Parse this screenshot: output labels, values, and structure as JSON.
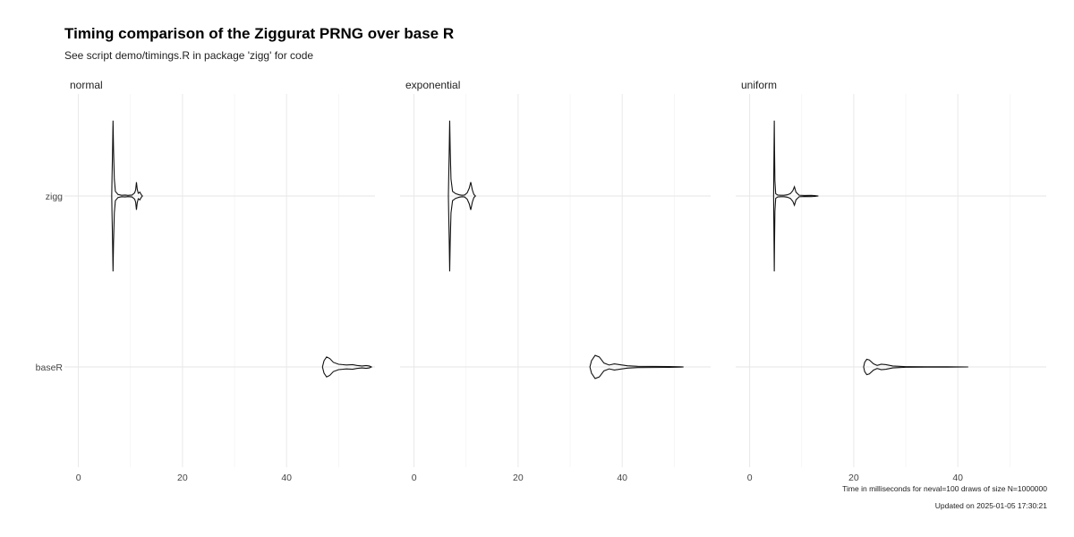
{
  "chart_data": {
    "type": "violin",
    "title": "Timing comparison of the Ziggurat PRNG over base R",
    "subtitle": "See script demo/timings.R in package 'zigg' for code",
    "caption_lines": [
      "Time in milliseconds for neval=100 draws of size N=1000000",
      "Updated on 2025-01-05 17:30:21"
    ],
    "categories": [
      "zigg",
      "baseR"
    ],
    "xlim": [
      -2,
      57
    ],
    "x_ticks": [
      0,
      20,
      40
    ],
    "x_minor_ticks": [
      10,
      30,
      50
    ],
    "grid": true,
    "panels": [
      {
        "name": "normal",
        "series": [
          {
            "category": "zigg",
            "profile": [
              [
                6.4,
                0.0
              ],
              [
                6.45,
                0.2
              ],
              [
                6.55,
                0.55
              ],
              [
                6.65,
                0.98
              ],
              [
                6.75,
                0.6
              ],
              [
                6.9,
                0.22
              ],
              [
                7.1,
                0.06
              ],
              [
                7.6,
                0.02
              ],
              [
                8.3,
                0.01
              ],
              [
                9.0,
                0.012
              ],
              [
                9.5,
                0.008
              ],
              [
                10.3,
                0.012
              ],
              [
                10.8,
                0.04
              ],
              [
                11.0,
                0.08
              ],
              [
                11.15,
                0.18
              ],
              [
                11.3,
                0.09
              ],
              [
                11.5,
                0.035
              ],
              [
                11.8,
                0.05
              ],
              [
                12.1,
                0.015
              ],
              [
                12.3,
                0.0
              ]
            ]
          },
          {
            "category": "baseR",
            "profile": [
              [
                46.9,
                0.0
              ],
              [
                47.2,
                0.08
              ],
              [
                47.7,
                0.13
              ],
              [
                48.3,
                0.11
              ],
              [
                49.0,
                0.06
              ],
              [
                50.0,
                0.035
              ],
              [
                51.5,
                0.025
              ],
              [
                52.7,
                0.03
              ],
              [
                53.5,
                0.02
              ],
              [
                54.5,
                0.012
              ],
              [
                55.3,
                0.018
              ],
              [
                55.9,
                0.012
              ],
              [
                56.3,
                0.0
              ]
            ]
          }
        ]
      },
      {
        "name": "exponential",
        "series": [
          {
            "category": "zigg",
            "profile": [
              [
                6.6,
                0.0
              ],
              [
                6.65,
                0.2
              ],
              [
                6.75,
                0.55
              ],
              [
                6.85,
                0.98
              ],
              [
                6.95,
                0.6
              ],
              [
                7.1,
                0.22
              ],
              [
                7.4,
                0.06
              ],
              [
                8.0,
                0.03
              ],
              [
                8.7,
                0.015
              ],
              [
                9.2,
                0.01
              ],
              [
                9.7,
                0.012
              ],
              [
                10.2,
                0.04
              ],
              [
                10.6,
                0.1
              ],
              [
                10.9,
                0.18
              ],
              [
                11.2,
                0.08
              ],
              [
                11.5,
                0.02
              ],
              [
                11.8,
                0.0
              ]
            ]
          },
          {
            "category": "baseR",
            "profile": [
              [
                33.8,
                0.0
              ],
              [
                34.1,
                0.08
              ],
              [
                34.8,
                0.15
              ],
              [
                35.6,
                0.13
              ],
              [
                36.5,
                0.05
              ],
              [
                37.5,
                0.025
              ],
              [
                38.5,
                0.04
              ],
              [
                39.5,
                0.03
              ],
              [
                41,
                0.015
              ],
              [
                43,
                0.008
              ],
              [
                46,
                0.006
              ],
              [
                49,
                0.005
              ],
              [
                51,
                0.003
              ],
              [
                51.8,
                0.0
              ]
            ]
          }
        ]
      },
      {
        "name": "uniform",
        "series": [
          {
            "category": "zigg",
            "profile": [
              [
                4.6,
                0.0
              ],
              [
                4.63,
                0.25
              ],
              [
                4.68,
                0.6
              ],
              [
                4.73,
                0.98
              ],
              [
                4.78,
                0.6
              ],
              [
                4.85,
                0.2
              ],
              [
                5.0,
                0.03
              ],
              [
                5.4,
                0.012
              ],
              [
                6.0,
                0.01
              ],
              [
                6.6,
                0.01
              ],
              [
                7.2,
                0.015
              ],
              [
                7.8,
                0.03
              ],
              [
                8.3,
                0.07
              ],
              [
                8.6,
                0.12
              ],
              [
                8.9,
                0.05
              ],
              [
                9.5,
                0.01
              ],
              [
                10.5,
                0.006
              ],
              [
                11.8,
                0.008
              ],
              [
                12.5,
                0.005
              ],
              [
                13.2,
                0.0
              ]
            ]
          },
          {
            "category": "baseR",
            "profile": [
              [
                21.9,
                0.0
              ],
              [
                22.1,
                0.06
              ],
              [
                22.5,
                0.1
              ],
              [
                23.0,
                0.09
              ],
              [
                23.8,
                0.04
              ],
              [
                24.5,
                0.02
              ],
              [
                25.3,
                0.035
              ],
              [
                26.2,
                0.03
              ],
              [
                27.5,
                0.012
              ],
              [
                30,
                0.004
              ],
              [
                34,
                0.003
              ],
              [
                38,
                0.003
              ],
              [
                42,
                0.0
              ]
            ]
          }
        ]
      }
    ]
  }
}
